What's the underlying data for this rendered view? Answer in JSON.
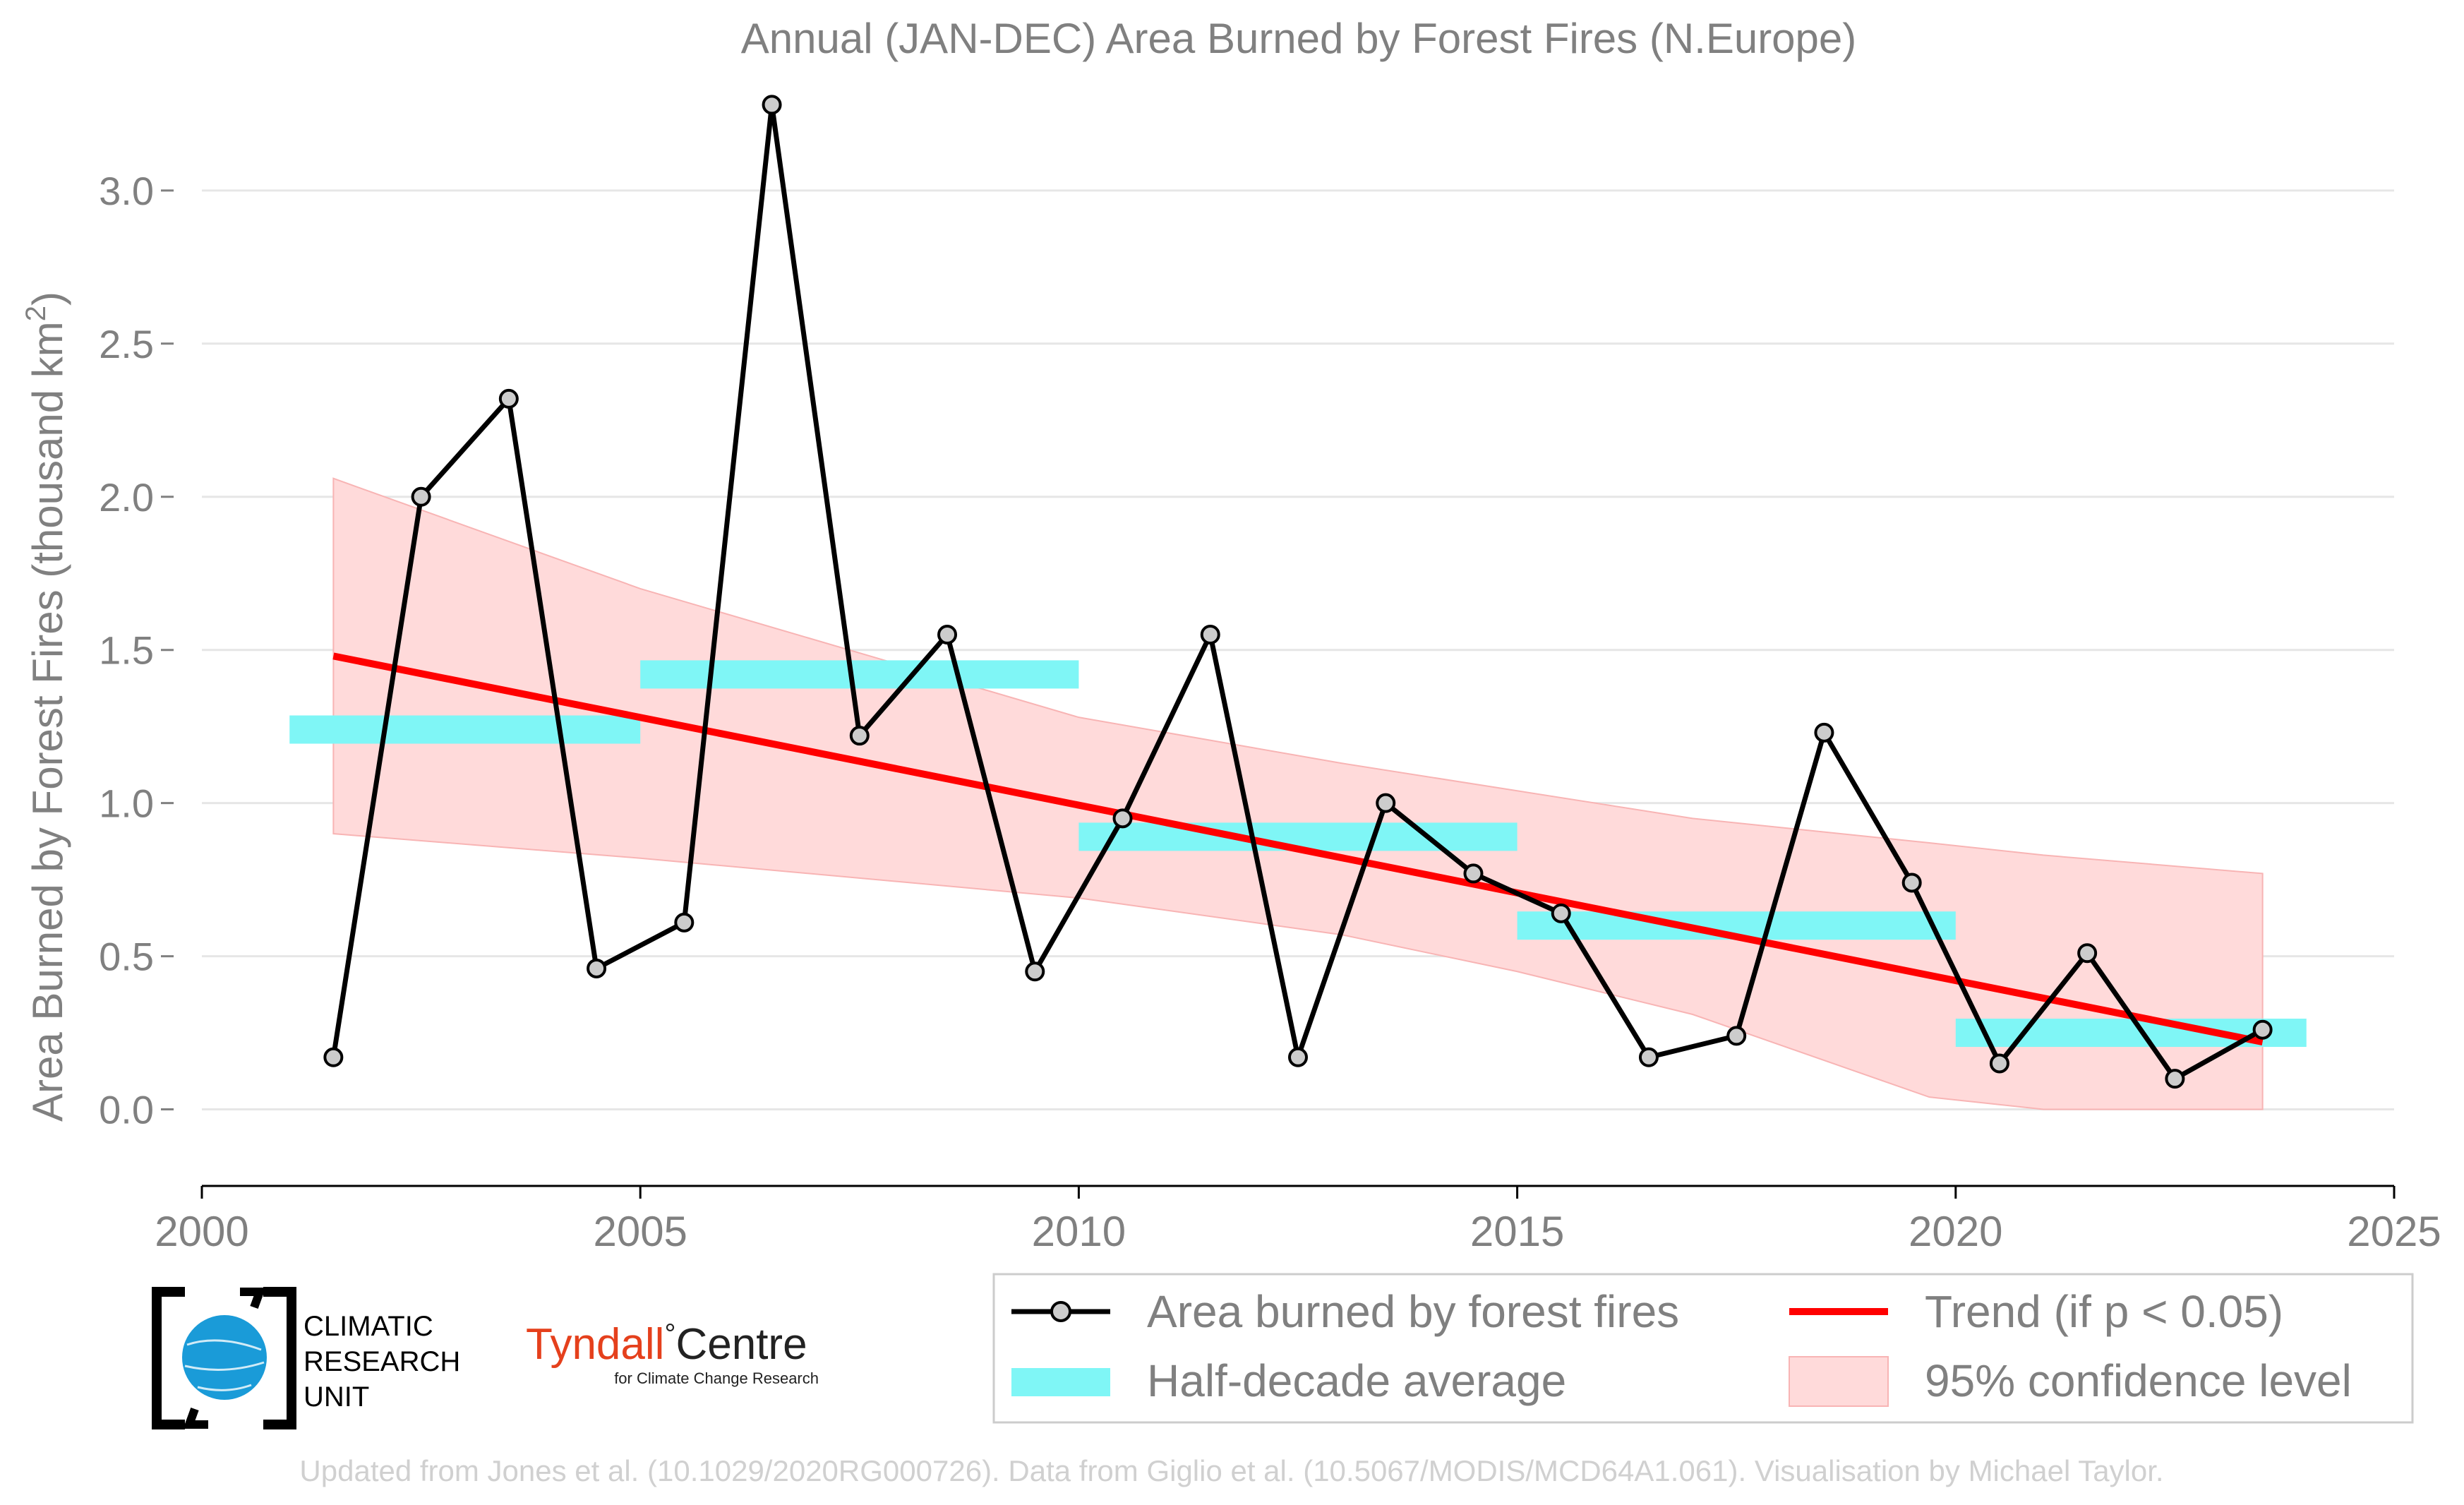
{
  "chart_data": {
    "type": "line",
    "title": "Annual (JAN-DEC) Area Burned by Forest Fires (N.Europe)",
    "ylabel": "Area Burned by Forest Fires (thousand km",
    "ylabel_sup": "2",
    "ylabel_close": ")",
    "xlim": [
      2000,
      2025
    ],
    "ylim": [
      -0.25,
      3.35
    ],
    "x_ticks": [
      2000,
      2005,
      2010,
      2015,
      2020,
      2025
    ],
    "y_ticks": [
      0.0,
      0.5,
      1.0,
      1.5,
      2.0,
      2.5,
      3.0
    ],
    "y_tick_labels": [
      "0.0",
      "0.5",
      "1.0",
      "1.5",
      "2.0",
      "2.5",
      "3.0"
    ],
    "grid": true,
    "series": [
      {
        "name": "Area burned by forest fires",
        "color": "#000000",
        "marker_fill": "#cccccc",
        "x": [
          2001.5,
          2002.5,
          2003.5,
          2004.5,
          2005.5,
          2006.5,
          2007.5,
          2008.5,
          2009.5,
          2010.5,
          2011.5,
          2012.5,
          2013.5,
          2014.5,
          2015.5,
          2016.5,
          2017.5,
          2018.5,
          2019.5,
          2020.5,
          2021.5,
          2022.5,
          2023.5
        ],
        "y": [
          0.17,
          2.0,
          2.32,
          0.46,
          0.61,
          3.28,
          1.22,
          1.55,
          0.45,
          0.95,
          1.55,
          0.17,
          1.0,
          0.77,
          0.64,
          0.17,
          0.24,
          1.23,
          0.74,
          0.15,
          0.51,
          0.1,
          0.26
        ]
      }
    ],
    "half_decade_average": {
      "name": "Half-decade average",
      "color": "#7ff6f6",
      "segments": [
        {
          "x0": 2001.0,
          "x1": 2005.0,
          "y": 1.24
        },
        {
          "x0": 2005.0,
          "x1": 2010.0,
          "y": 1.42
        },
        {
          "x0": 2010.0,
          "x1": 2015.0,
          "y": 0.89
        },
        {
          "x0": 2015.0,
          "x1": 2020.0,
          "y": 0.6
        },
        {
          "x0": 2020.0,
          "x1": 2024.0,
          "y": 0.25
        }
      ]
    },
    "trend": {
      "name": "Trend (if p < 0.05)",
      "color": "#ff0000",
      "x": [
        2001.5,
        2023.5
      ],
      "y": [
        1.48,
        0.22
      ]
    },
    "confidence": {
      "name": "95% confidence level",
      "color": "#ffdada",
      "x": [
        2001.5,
        2005.0,
        2010.0,
        2013.0,
        2015.0,
        2017.0,
        2019.7,
        2021.0,
        2023.5
      ],
      "upper": [
        2.06,
        1.7,
        1.28,
        1.13,
        1.04,
        0.95,
        0.87,
        0.83,
        0.77
      ],
      "lower": [
        0.9,
        0.82,
        0.69,
        0.57,
        0.45,
        0.31,
        0.04,
        0.0,
        0.0
      ]
    },
    "legend": {
      "position": "bottom-right",
      "items": [
        "Area burned by forest fires",
        "Trend (if p < 0.05)",
        "Half-decade average",
        "95% confidence level"
      ]
    }
  },
  "logos": {
    "cru": [
      "CLIMATIC",
      "RESEARCH",
      "UNIT"
    ],
    "tyndall_main": "Tyndall",
    "tyndall_degree": "°",
    "tyndall_centre": "Centre",
    "tyndall_sub": "for Climate Change Research"
  },
  "credit": "Updated from Jones et al. (10.1029/2020RG000726). Data from Giglio et al. (10.5067/MODIS/MCD64A1.061). Visualisation by Michael Taylor."
}
